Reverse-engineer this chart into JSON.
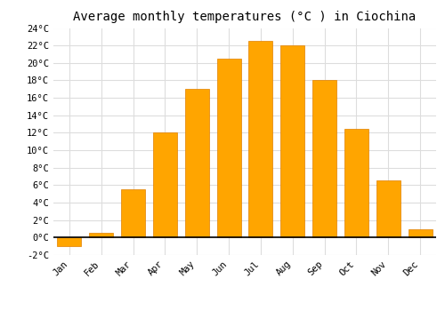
{
  "title": "Average monthly temperatures (°C ) in Ciochina",
  "months": [
    "Jan",
    "Feb",
    "Mar",
    "Apr",
    "May",
    "Jun",
    "Jul",
    "Aug",
    "Sep",
    "Oct",
    "Nov",
    "Dec"
  ],
  "values": [
    -1.0,
    0.5,
    5.5,
    12.0,
    17.0,
    20.5,
    22.5,
    22.0,
    18.0,
    12.5,
    6.5,
    1.0
  ],
  "bar_color": "#FFA500",
  "bar_color_neg": "#FFA500",
  "ylim": [
    -2,
    24
  ],
  "yticks": [
    -2,
    0,
    2,
    4,
    6,
    8,
    10,
    12,
    14,
    16,
    18,
    20,
    22,
    24
  ],
  "ytick_labels": [
    "-2°C",
    "0°C",
    "2°C",
    "4°C",
    "6°C",
    "8°C",
    "10°C",
    "12°C",
    "14°C",
    "16°C",
    "18°C",
    "20°C",
    "22°C",
    "24°C"
  ],
  "background_color": "#ffffff",
  "plot_bg_color": "#ffffff",
  "grid_color": "#dddddd",
  "bar_edge_color": "#e08000",
  "title_fontsize": 10,
  "tick_fontsize": 7.5,
  "font_family": "monospace",
  "bar_width": 0.75
}
